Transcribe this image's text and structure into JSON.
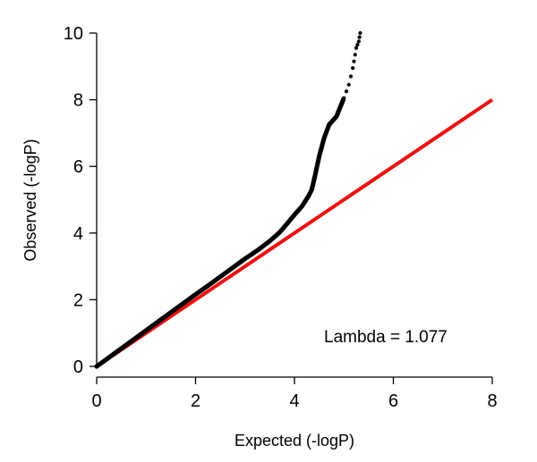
{
  "chart_data": {
    "type": "scatter",
    "xlabel": "Expected (-logP)",
    "ylabel": "Observed (-logP)",
    "xlim": [
      0,
      8
    ],
    "ylim": [
      0,
      10
    ],
    "xticks": [
      "0",
      "2",
      "4",
      "6",
      "8"
    ],
    "yticks": [
      "0",
      "2",
      "4",
      "6",
      "8",
      "10"
    ],
    "annotation": "Lambda = 1.077",
    "reference_line": {
      "from": [
        0,
        0
      ],
      "to": [
        8,
        8
      ],
      "color": "#ee1111"
    },
    "point_color": "#000000",
    "series": [
      {
        "values": [
          [
            0.0,
            0.0
          ],
          [
            0.25,
            0.27
          ],
          [
            0.5,
            0.54
          ],
          [
            0.75,
            0.81
          ],
          [
            1.0,
            1.08
          ],
          [
            1.25,
            1.35
          ],
          [
            1.5,
            1.62
          ],
          [
            1.75,
            1.89
          ],
          [
            2.0,
            2.16
          ],
          [
            2.25,
            2.42
          ],
          [
            2.5,
            2.69
          ],
          [
            2.75,
            2.96
          ],
          [
            3.0,
            3.23
          ],
          [
            3.25,
            3.48
          ],
          [
            3.5,
            3.76
          ],
          [
            3.7,
            4.02
          ],
          [
            3.85,
            4.28
          ],
          [
            4.0,
            4.55
          ],
          [
            4.15,
            4.8
          ],
          [
            4.28,
            5.1
          ],
          [
            4.35,
            5.3
          ],
          [
            4.42,
            5.75
          ],
          [
            4.5,
            6.3
          ],
          [
            4.6,
            6.85
          ],
          [
            4.7,
            7.25
          ],
          [
            4.85,
            7.5
          ],
          [
            5.0,
            8.05
          ],
          [
            5.1,
            8.45
          ],
          [
            5.18,
            8.95
          ],
          [
            5.25,
            9.55
          ],
          [
            5.3,
            9.75
          ],
          [
            5.33,
            10.0
          ]
        ]
      }
    ]
  }
}
